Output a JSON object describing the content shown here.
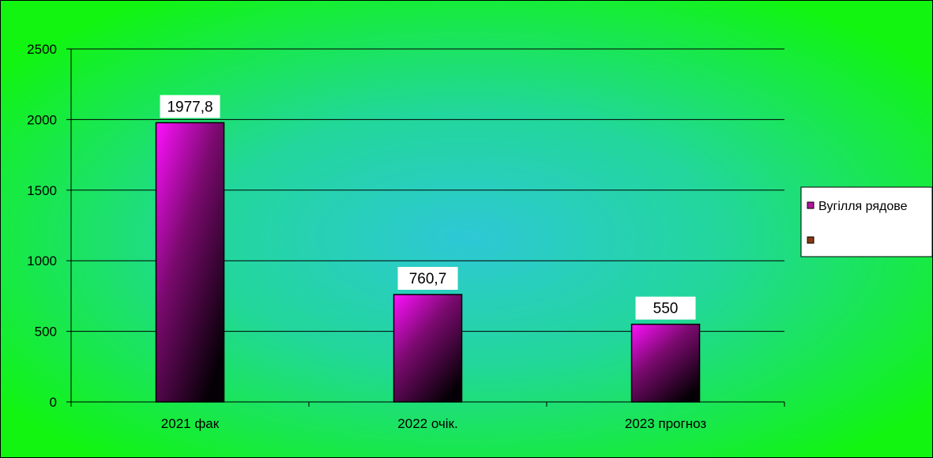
{
  "chart_data": {
    "type": "bar",
    "categories": [
      "2021 фак",
      "2022 очік.",
      "2023 прогноз"
    ],
    "series": [
      {
        "name": "Вугілля рядове",
        "values": [
          1977.8,
          760.7,
          550
        ]
      }
    ],
    "data_labels": [
      "1977,8",
      "760,7",
      "550"
    ],
    "y_ticks": [
      "0",
      "500",
      "1000",
      "1500",
      "2000",
      "2500"
    ],
    "ylim": [
      0,
      2500
    ],
    "title": "",
    "xlabel": "",
    "ylabel": "",
    "grid": true,
    "legend_position": "right",
    "legend_entries": [
      {
        "label": "Вугілля рядове",
        "color": "#b0189a"
      },
      {
        "label": "",
        "color": "#8a3a10"
      }
    ],
    "colors": {
      "background": "#11f511",
      "background_center": "#2ec8d6",
      "bar_light": "#ff10ff",
      "bar_dark": "#050005"
    }
  }
}
